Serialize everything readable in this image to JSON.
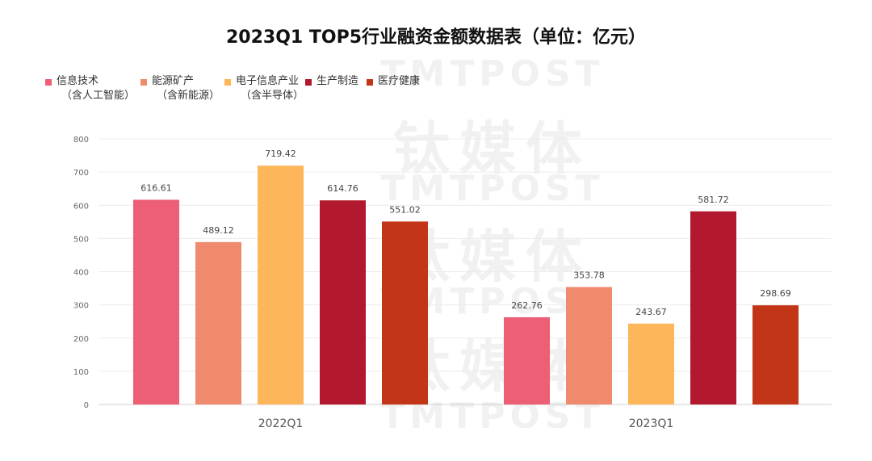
{
  "chart_data": {
    "type": "bar",
    "title": "2023Q1 TOP5行业融资金额数据表（单位：亿元）",
    "categories": [
      "2022Q1",
      "2023Q1"
    ],
    "series": [
      {
        "name": "信息技术",
        "note": "（含人工智能）",
        "color": "#EC5F74",
        "values": [
          616.61,
          262.76
        ]
      },
      {
        "name": "能源矿产",
        "note": "（含新能源）",
        "color": "#EF8A6E",
        "values": [
          489.12,
          353.78
        ]
      },
      {
        "name": "电子信息产业",
        "note": "（含半导体）",
        "color": "#FDB65A",
        "values": [
          719.42,
          243.67
        ]
      },
      {
        "name": "生产制造",
        "note": "",
        "color": "#B2182E",
        "values": [
          614.76,
          581.72
        ]
      },
      {
        "name": "医疗健康",
        "note": "",
        "color": "#C23516",
        "values": [
          551.02,
          298.69
        ]
      }
    ],
    "value_labels": [
      [
        "616.61",
        "262.76"
      ],
      [
        "489.12",
        "353.78"
      ],
      [
        "719.42",
        "243.67"
      ],
      [
        "614.76",
        "581.72"
      ],
      [
        "551.02",
        "298.69"
      ]
    ],
    "ylim": [
      0,
      800
    ],
    "yticks": [
      "0",
      "100",
      "200",
      "300",
      "400",
      "500",
      "600",
      "700",
      "800"
    ],
    "grid": true,
    "legend_position": "top-left"
  },
  "watermark": {
    "brand_cn": "钛媒体",
    "brand_en": "TMTPOST"
  }
}
